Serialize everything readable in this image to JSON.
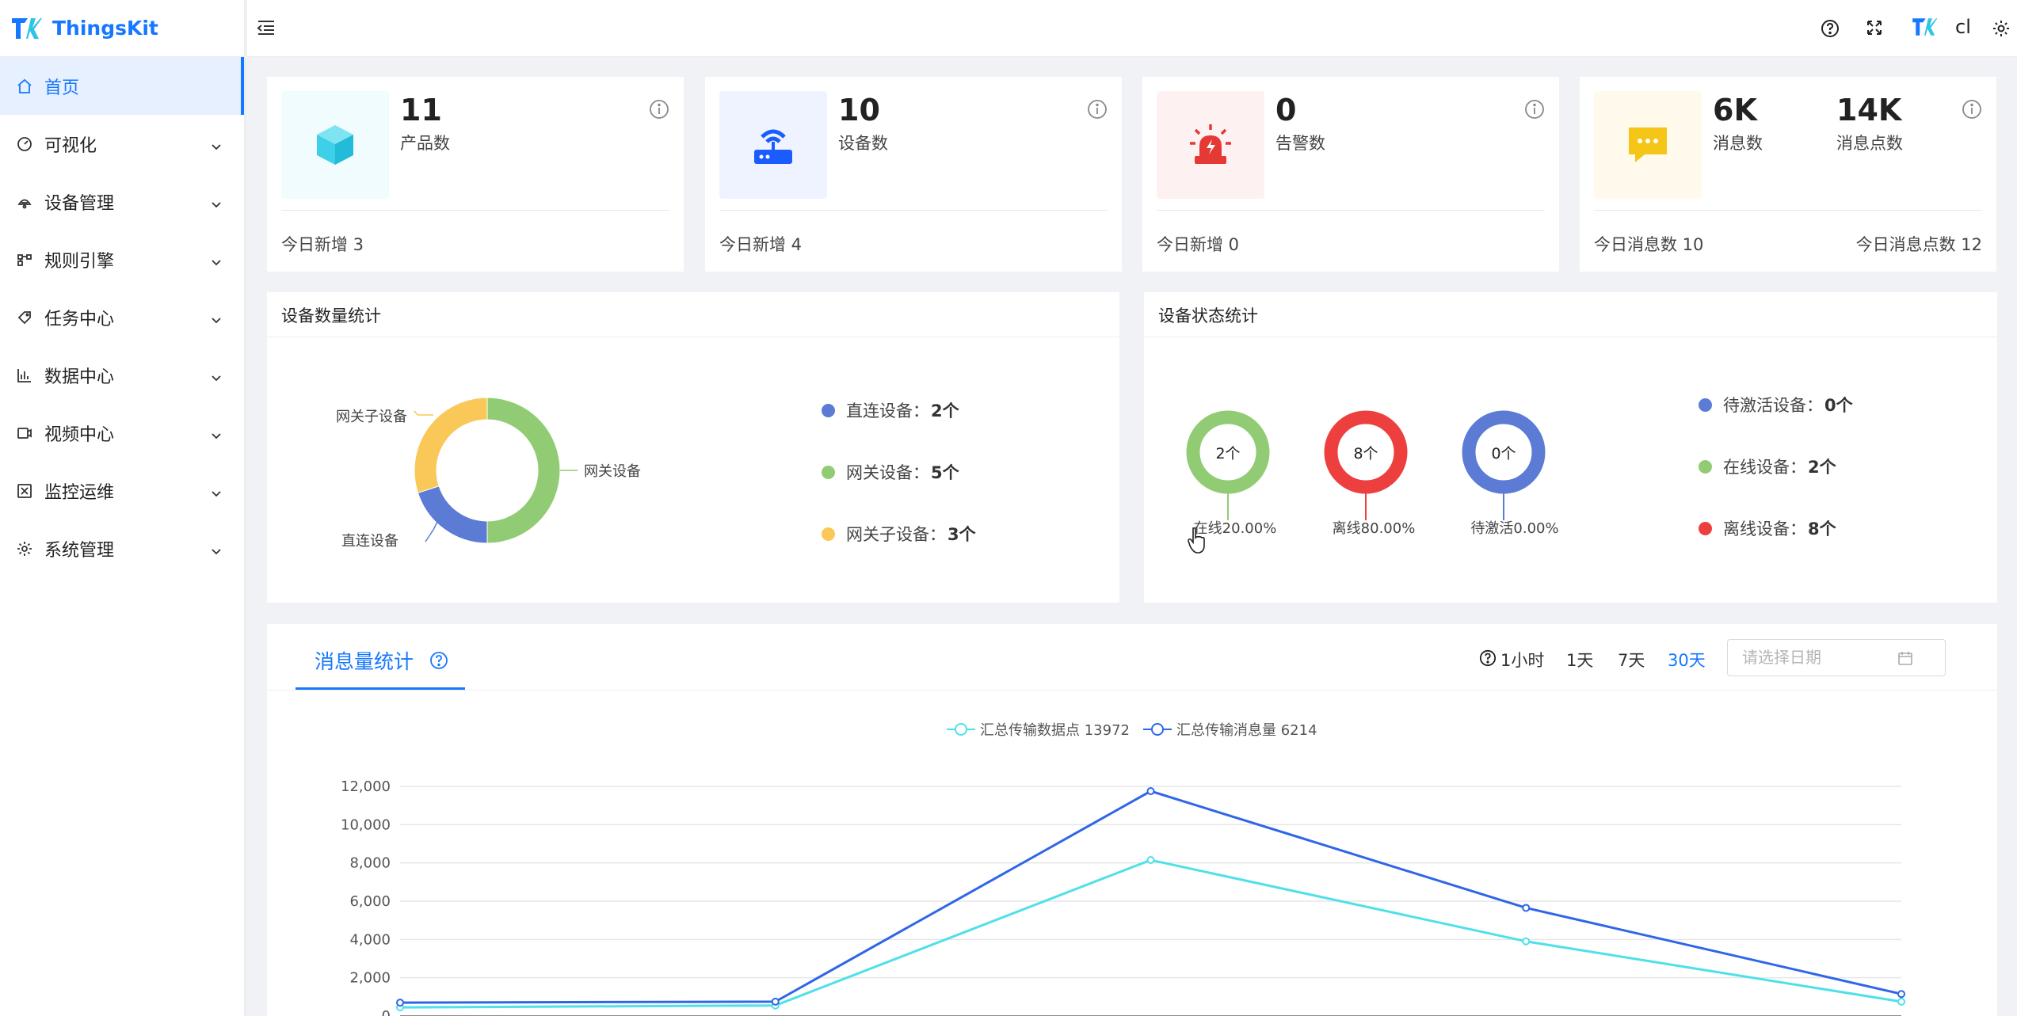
{
  "brand": {
    "name": "ThingsKit"
  },
  "sidebar": {
    "items": [
      {
        "label": "首页",
        "icon": "home-icon"
      },
      {
        "label": "可视化",
        "icon": "dashboard-icon"
      },
      {
        "label": "设备管理",
        "icon": "device-icon"
      },
      {
        "label": "规则引擎",
        "icon": "rule-icon"
      },
      {
        "label": "任务中心",
        "icon": "tag-icon"
      },
      {
        "label": "数据中心",
        "icon": "bar-chart-icon"
      },
      {
        "label": "视频中心",
        "icon": "video-icon"
      },
      {
        "label": "监控运维",
        "icon": "monitor-icon"
      },
      {
        "label": "系统管理",
        "icon": "settings-icon"
      }
    ]
  },
  "header": {
    "username": "cl"
  },
  "stats": [
    {
      "value": "11",
      "label": "产品数",
      "foot": "今日新增 3",
      "icon": "cube-icon",
      "bg": "#f0fcfd",
      "color": "#3ed0e8"
    },
    {
      "value": "10",
      "label": "设备数",
      "foot": "今日新增 4",
      "icon": "router-icon",
      "bg": "#eef3ff",
      "color": "#1a5cff"
    },
    {
      "value": "0",
      "label": "告警数",
      "foot": "今日新增 0",
      "icon": "alarm-icon",
      "bg": "#fdf1f1",
      "color": "#e53935"
    },
    {
      "value": "6K",
      "label": "消息数",
      "value2": "14K",
      "label2": "消息点数",
      "foot": "今日消息数 10",
      "foot2": "今日消息点数 12",
      "icon": "message-icon",
      "bg": "#fffaeb",
      "color": "#f5c518"
    }
  ],
  "device_count": {
    "title": "设备数量统计",
    "slice_labels": [
      "网关设备",
      "直连设备",
      "网关子设备"
    ],
    "legend": [
      {
        "label": "直连设备：",
        "value": "2个",
        "color": "#5b7bd5"
      },
      {
        "label": "网关设备：",
        "value": "5个",
        "color": "#91cc75"
      },
      {
        "label": "网关子设备：",
        "value": "3个",
        "color": "#fac858"
      }
    ]
  },
  "device_status": {
    "title": "设备状态统计",
    "rings": [
      {
        "center": "2个",
        "caption": "在线20.00%",
        "color": "#91cc75"
      },
      {
        "center": "8个",
        "caption": "离线80.00%",
        "color": "#ee3f3f"
      },
      {
        "center": "0个",
        "caption": "待激活0.00%",
        "color": "#5b7bd5"
      }
    ],
    "legend": [
      {
        "label": "待激活设备：",
        "value": "0个",
        "color": "#5b7bd5"
      },
      {
        "label": "在线设备：",
        "value": "2个",
        "color": "#91cc75"
      },
      {
        "label": "离线设备：",
        "value": "8个",
        "color": "#ee3f3f"
      }
    ]
  },
  "messages": {
    "tab": "消息量统计",
    "ranges": [
      "1小时",
      "1天",
      "7天",
      "30天"
    ],
    "active_range": "30天",
    "date_placeholder": "请选择日期"
  },
  "chart_data": [
    {
      "type": "pie",
      "categories": [
        "直连设备",
        "网关设备",
        "网关子设备"
      ],
      "values": [
        2,
        5,
        3
      ],
      "colors": [
        "#5b7bd5",
        "#91cc75",
        "#fac858"
      ]
    },
    {
      "type": "line",
      "series": [
        {
          "name": "汇总传输数据点 13972",
          "values": [
            450,
            550,
            8150,
            3900,
            750
          ],
          "color": "#4fe0e8"
        },
        {
          "name": "汇总传输消息量 6214",
          "values": [
            700,
            750,
            11750,
            5650,
            1150
          ],
          "color": "#2f66e8"
        }
      ],
      "ylim": [
        0,
        12000
      ],
      "yticks": [
        "0",
        "2,000",
        "4,000",
        "6,000",
        "8,000",
        "10,000",
        "12,000"
      ],
      "grid": true,
      "legend": "top-center"
    }
  ]
}
